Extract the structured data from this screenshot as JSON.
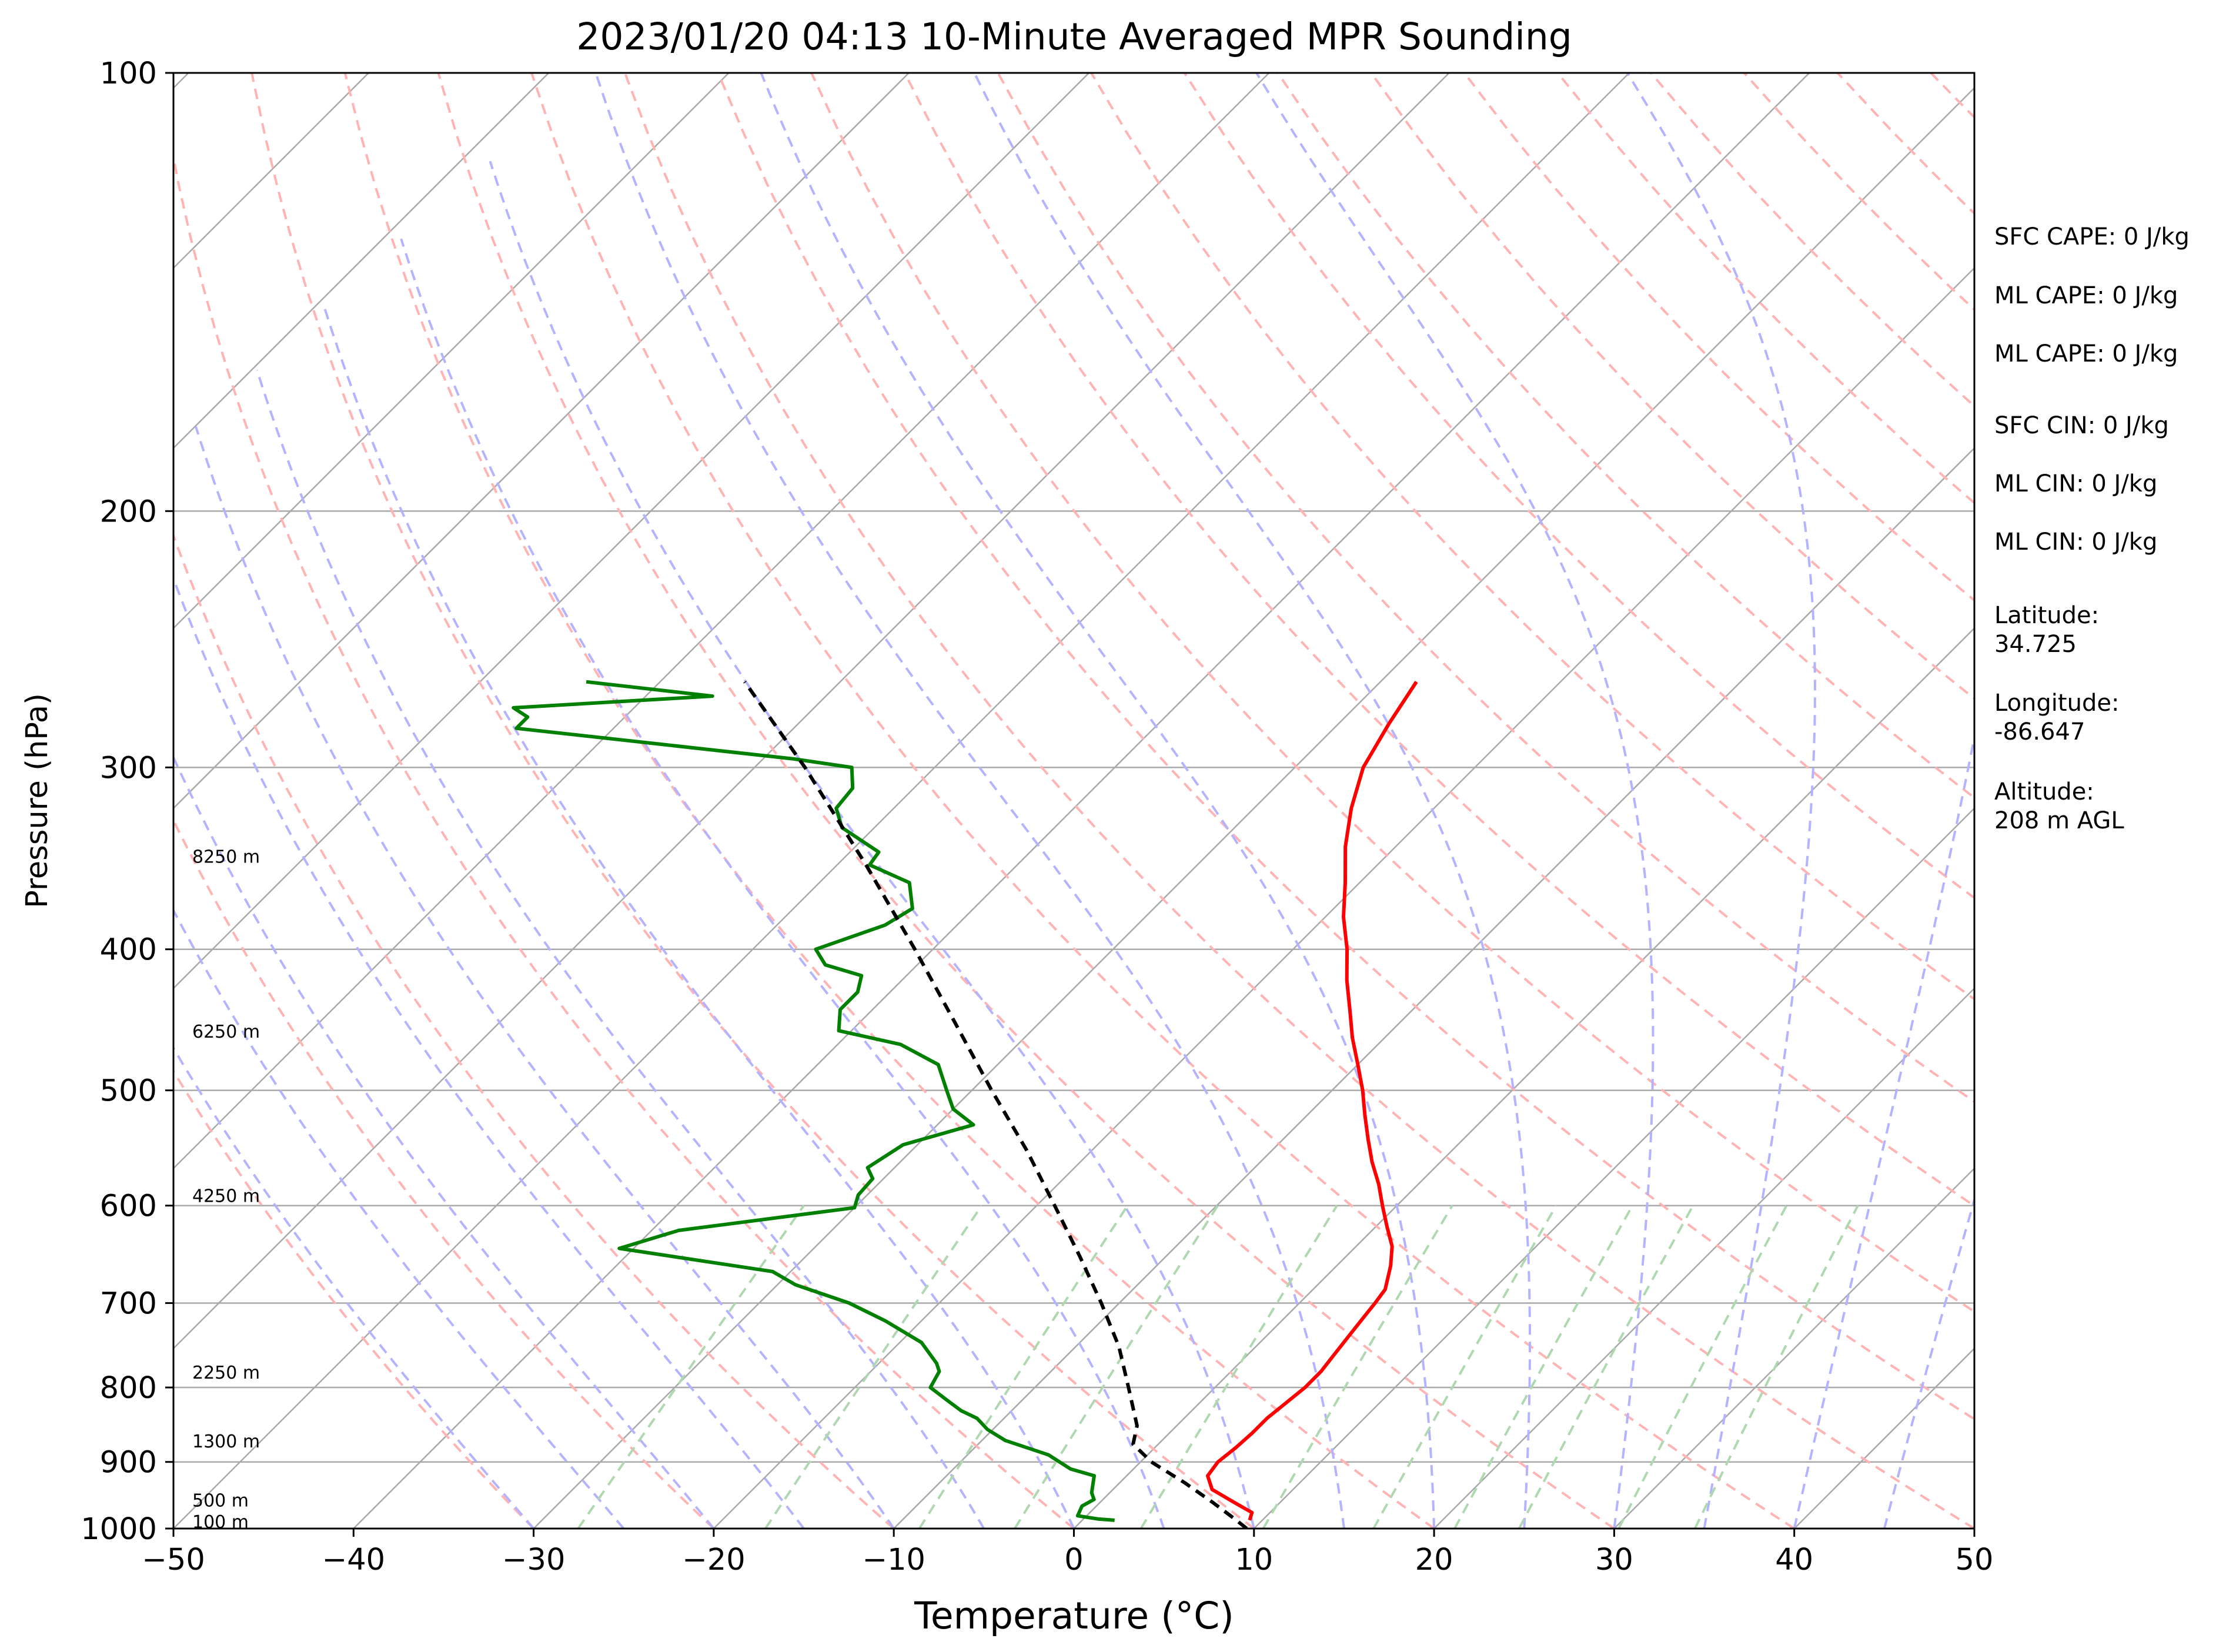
{
  "chart_data": {
    "type": "skew-t log-p sounding",
    "title": "2023/01/20 04:13 10-Minute Averaged MPR Sounding",
    "xlabel": "Temperature (°C)",
    "ylabel": "Pressure (hPa)",
    "xlim": [
      -50,
      50
    ],
    "ylim": [
      1000,
      100
    ],
    "y_scale": "log",
    "x_ticks": [
      "−50",
      "−40",
      "−30",
      "−20",
      "−10",
      "0",
      "10",
      "20",
      "30",
      "40",
      "50"
    ],
    "y_ticks": [
      "100",
      "200",
      "300",
      "400",
      "500",
      "600",
      "700",
      "800",
      "900",
      "1000"
    ],
    "grid": true,
    "background_lines": {
      "isotherms_color": "#a9a9a9",
      "dry_adiabats_color": "#ffb3b3",
      "moist_adiabats_color": "#b3b3ff",
      "mixing_ratio_color": "#b0d8b0"
    },
    "height_labels": [
      {
        "label": "100 m",
        "pressure": 988
      },
      {
        "label": "500 m",
        "pressure": 955
      },
      {
        "label": "1300 m",
        "pressure": 870
      },
      {
        "label": "2250 m",
        "pressure": 780
      },
      {
        "label": "4250 m",
        "pressure": 590
      },
      {
        "label": "6250 m",
        "pressure": 455
      },
      {
        "label": "8250 m",
        "pressure": 345
      }
    ],
    "series": [
      {
        "type": "temperature",
        "color": "#ff0000",
        "pressure": [
          987,
          975,
          960,
          940,
          920,
          900,
          880,
          860,
          840,
          820,
          800,
          780,
          760,
          740,
          720,
          700,
          685,
          660,
          640,
          620,
          600,
          580,
          560,
          540,
          520,
          500,
          480,
          460,
          440,
          420,
          400,
          380,
          360,
          340,
          320,
          300,
          280,
          262
        ],
        "temperature": [
          9.3,
          9.0,
          7.5,
          5.5,
          4.5,
          4.3,
          4.5,
          4.6,
          4.6,
          4.8,
          5.0,
          5.0,
          4.8,
          4.6,
          4.4,
          4.2,
          4.0,
          3.0,
          2.0,
          0.6,
          -0.8,
          -2.2,
          -3.8,
          -5.3,
          -6.8,
          -8.3,
          -10.0,
          -11.8,
          -13.5,
          -15.3,
          -17.0,
          -19.0,
          -20.8,
          -22.8,
          -24.6,
          -26.2,
          -27.2,
          -28.0
        ]
      },
      {
        "type": "dewpoint",
        "color": "#008000",
        "pressure": [
          987,
          985,
          980,
          965,
          955,
          945,
          920,
          910,
          890,
          870,
          855,
          840,
          830,
          815,
          800,
          790,
          780,
          770,
          745,
          720,
          700,
          680,
          666,
          642,
          624,
          602,
          590,
          575,
          565,
          545,
          528,
          515,
          500,
          480,
          465,
          455,
          440,
          428,
          417,
          410,
          400,
          385,
          375,
          360,
          350,
          343,
          330,
          320,
          310,
          300,
          296,
          282,
          277,
          273,
          268,
          262
        ],
        "dewpoint": [
          1.8,
          0.8,
          -0.5,
          -0.8,
          -0.5,
          -1.0,
          -1.8,
          -3.5,
          -5.5,
          -8.7,
          -10.3,
          -11.5,
          -12.8,
          -14.3,
          -15.8,
          -16.0,
          -16.2,
          -16.8,
          -18.8,
          -22.0,
          -25.0,
          -29.0,
          -31.0,
          -40.8,
          -38.5,
          -30.0,
          -30.5,
          -30.6,
          -31.5,
          -30.8,
          -28.0,
          -30.0,
          -31.4,
          -33.3,
          -36.5,
          -40.7,
          -41.8,
          -41.8,
          -42.5,
          -45.1,
          -46.5,
          -44.0,
          -43.4,
          -45.0,
          -48.2,
          -48.4,
          -51.8,
          -53.2,
          -53.4,
          -54.6,
          -58.3,
          -75.4,
          -75.4,
          -76.7,
          -66.3,
          -74.1
        ]
      },
      {
        "type": "parcel",
        "color": "#000000",
        "pressure": [
          1000,
          985,
          960,
          930,
          900,
          875,
          850,
          800,
          750,
          700,
          650,
          600,
          550,
          500,
          450,
          400,
          350,
          300,
          262
        ],
        "temperature": [
          9.6,
          8.4,
          6.3,
          3.6,
          0.6,
          -1.4,
          -2.2,
          -4.8,
          -7.6,
          -11.0,
          -14.8,
          -19.0,
          -23.6,
          -28.9,
          -34.6,
          -41.0,
          -48.4,
          -57.2,
          -65.3
        ]
      }
    ]
  },
  "side_panel": {
    "sfc_cape": "SFC CAPE: 0 J/kg",
    "ml_cape_1": "ML CAPE: 0 J/kg",
    "ml_cape_2": "ML CAPE: 0 J/kg",
    "sfc_cin": "SFC CIN: 0 J/kg",
    "ml_cin_1": "ML CIN: 0 J/kg",
    "ml_cin_2": "ML CIN: 0 J/kg",
    "latitude_label": "Latitude:",
    "latitude_value": "34.725",
    "longitude_label": "Longitude:",
    "longitude_value": "-86.647",
    "altitude_label": "Altitude:",
    "altitude_value": "208 m AGL"
  }
}
